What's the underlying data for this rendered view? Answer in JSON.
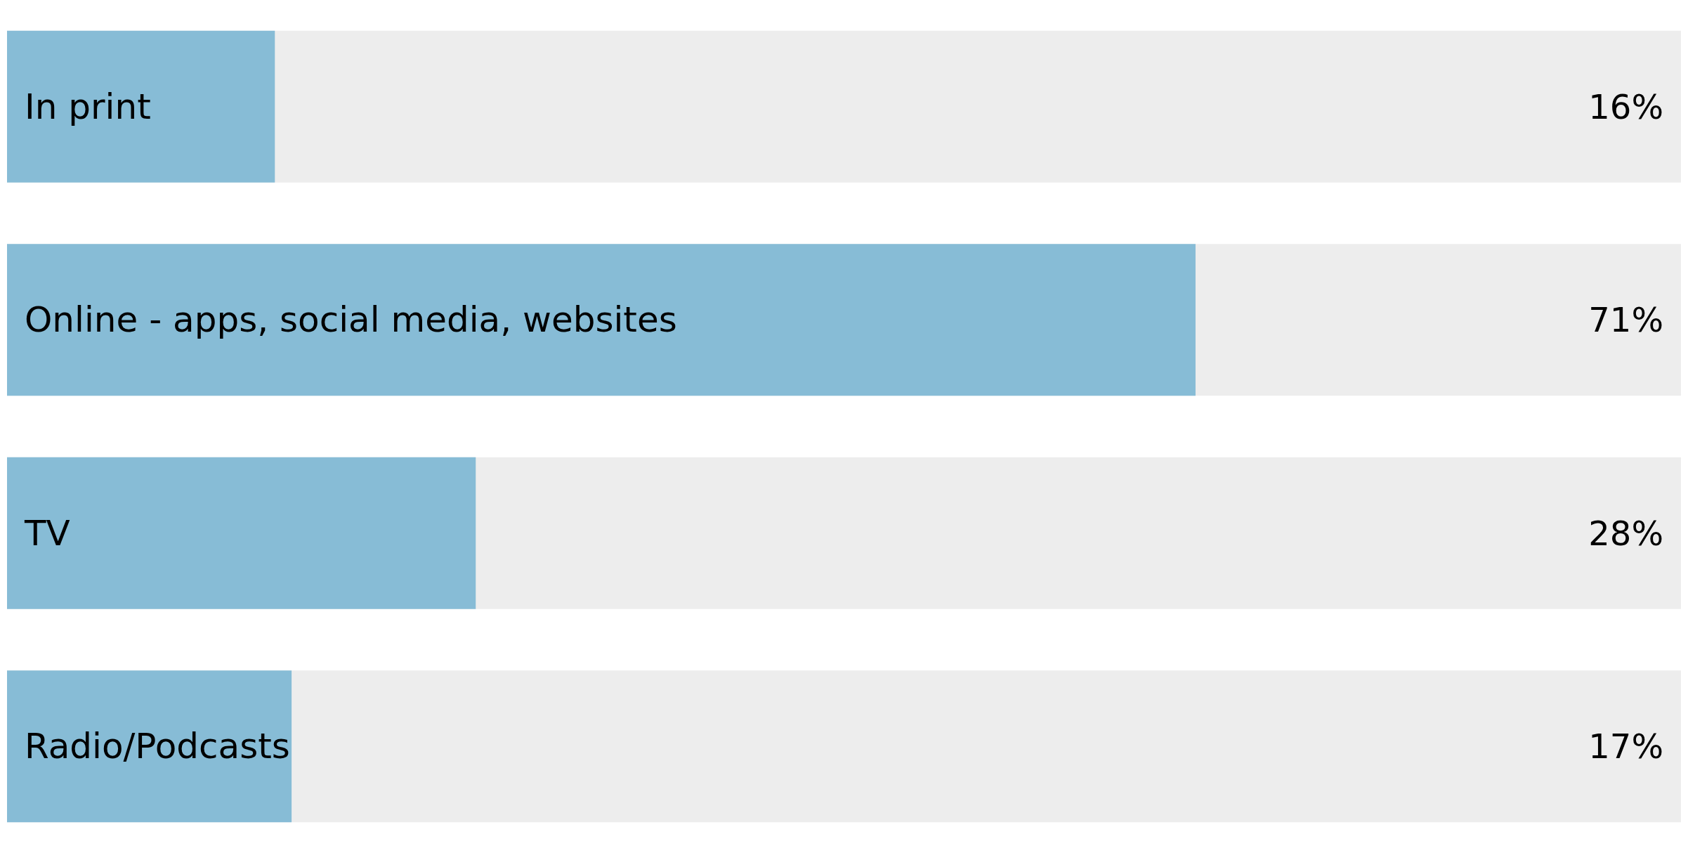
{
  "chart_data": {
    "type": "bar",
    "orientation": "horizontal",
    "categories": [
      "In print",
      "Online - apps, social media, websites",
      "TV",
      "Radio/Podcasts"
    ],
    "values": [
      16,
      71,
      28,
      17
    ],
    "value_labels": [
      "16%",
      "71%",
      "28%",
      "17%"
    ],
    "color": "#87bcd6",
    "xlim": [
      0,
      100
    ]
  }
}
